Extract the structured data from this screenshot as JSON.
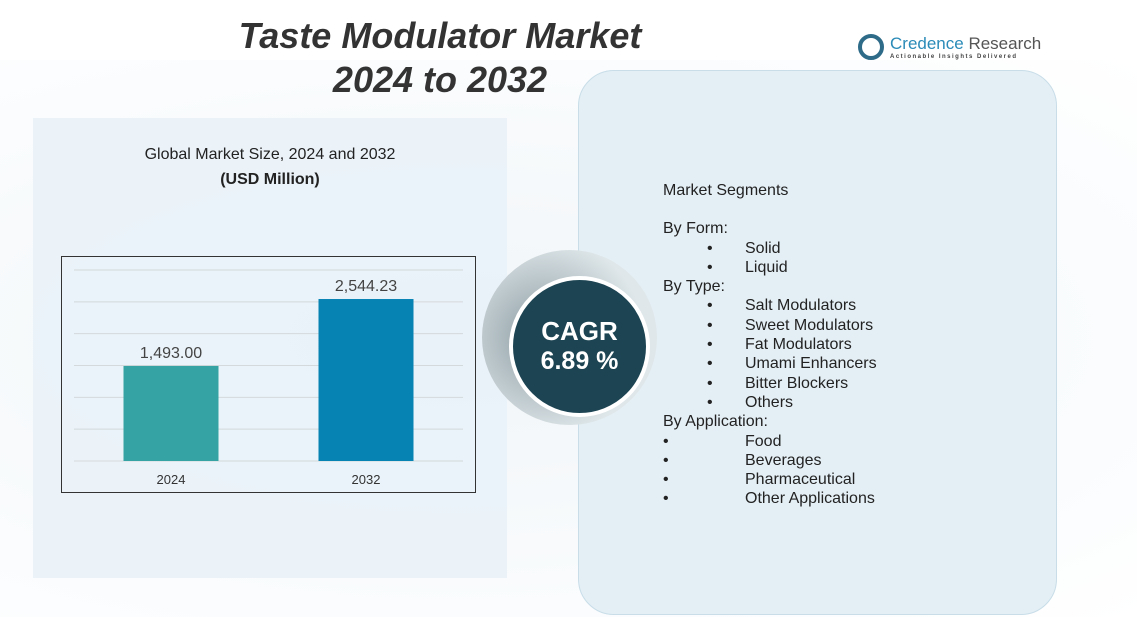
{
  "header": {
    "title_line1": "Taste Modulator Market",
    "title_line2": "2024 to 2032"
  },
  "logo": {
    "name1": "Credence",
    "name2": " Research",
    "tagline": "Actionable Insights Delivered"
  },
  "chart_header": {
    "subtitle": "Global Market Size, 2024 and 2032",
    "unit": "(USD Million)"
  },
  "chart_data": {
    "type": "bar",
    "categories": [
      "2024",
      "2032"
    ],
    "values": [
      1493.0,
      2544.23
    ],
    "value_labels": [
      "1,493.00",
      "2,544.23"
    ],
    "ylim": [
      0,
      3000
    ],
    "grid": true,
    "colors": [
      "#35a3a3",
      "#0683b3"
    ]
  },
  "cagr": {
    "label": "CAGR",
    "value": "6.89 %"
  },
  "segments": {
    "title": "Market Segments",
    "groups": [
      {
        "label": "By Form:",
        "items": [
          "Solid",
          "Liquid"
        ]
      },
      {
        "label": "By Type:",
        "items": [
          "Salt Modulators",
          "Sweet Modulators",
          "Fat Modulators",
          "Umami Enhancers",
          "Bitter Blockers",
          "Others"
        ]
      },
      {
        "label": "By Application:",
        "items": [
          "Food",
          "Beverages",
          "Pharmaceutical",
          "Other Applications"
        ]
      }
    ]
  }
}
